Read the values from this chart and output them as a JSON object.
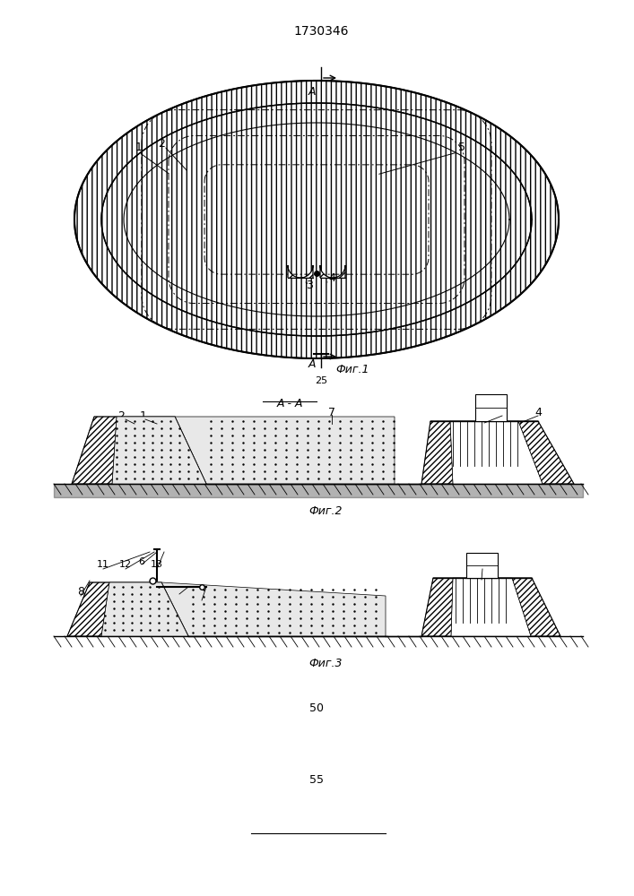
{
  "patent_number": "1730346",
  "fig1_label": "Фиг.1",
  "fig2_label": "Фиг.2",
  "fig3_label": "Фиг.3",
  "section_label": "А-А",
  "page_numbers": [
    "25",
    "50",
    "55"
  ],
  "bg_color": "#ffffff",
  "line_color": "#000000",
  "hatch_color": "#000000",
  "dot_fill": "#d8d8d8",
  "gray_fill": "#c0c0c0"
}
